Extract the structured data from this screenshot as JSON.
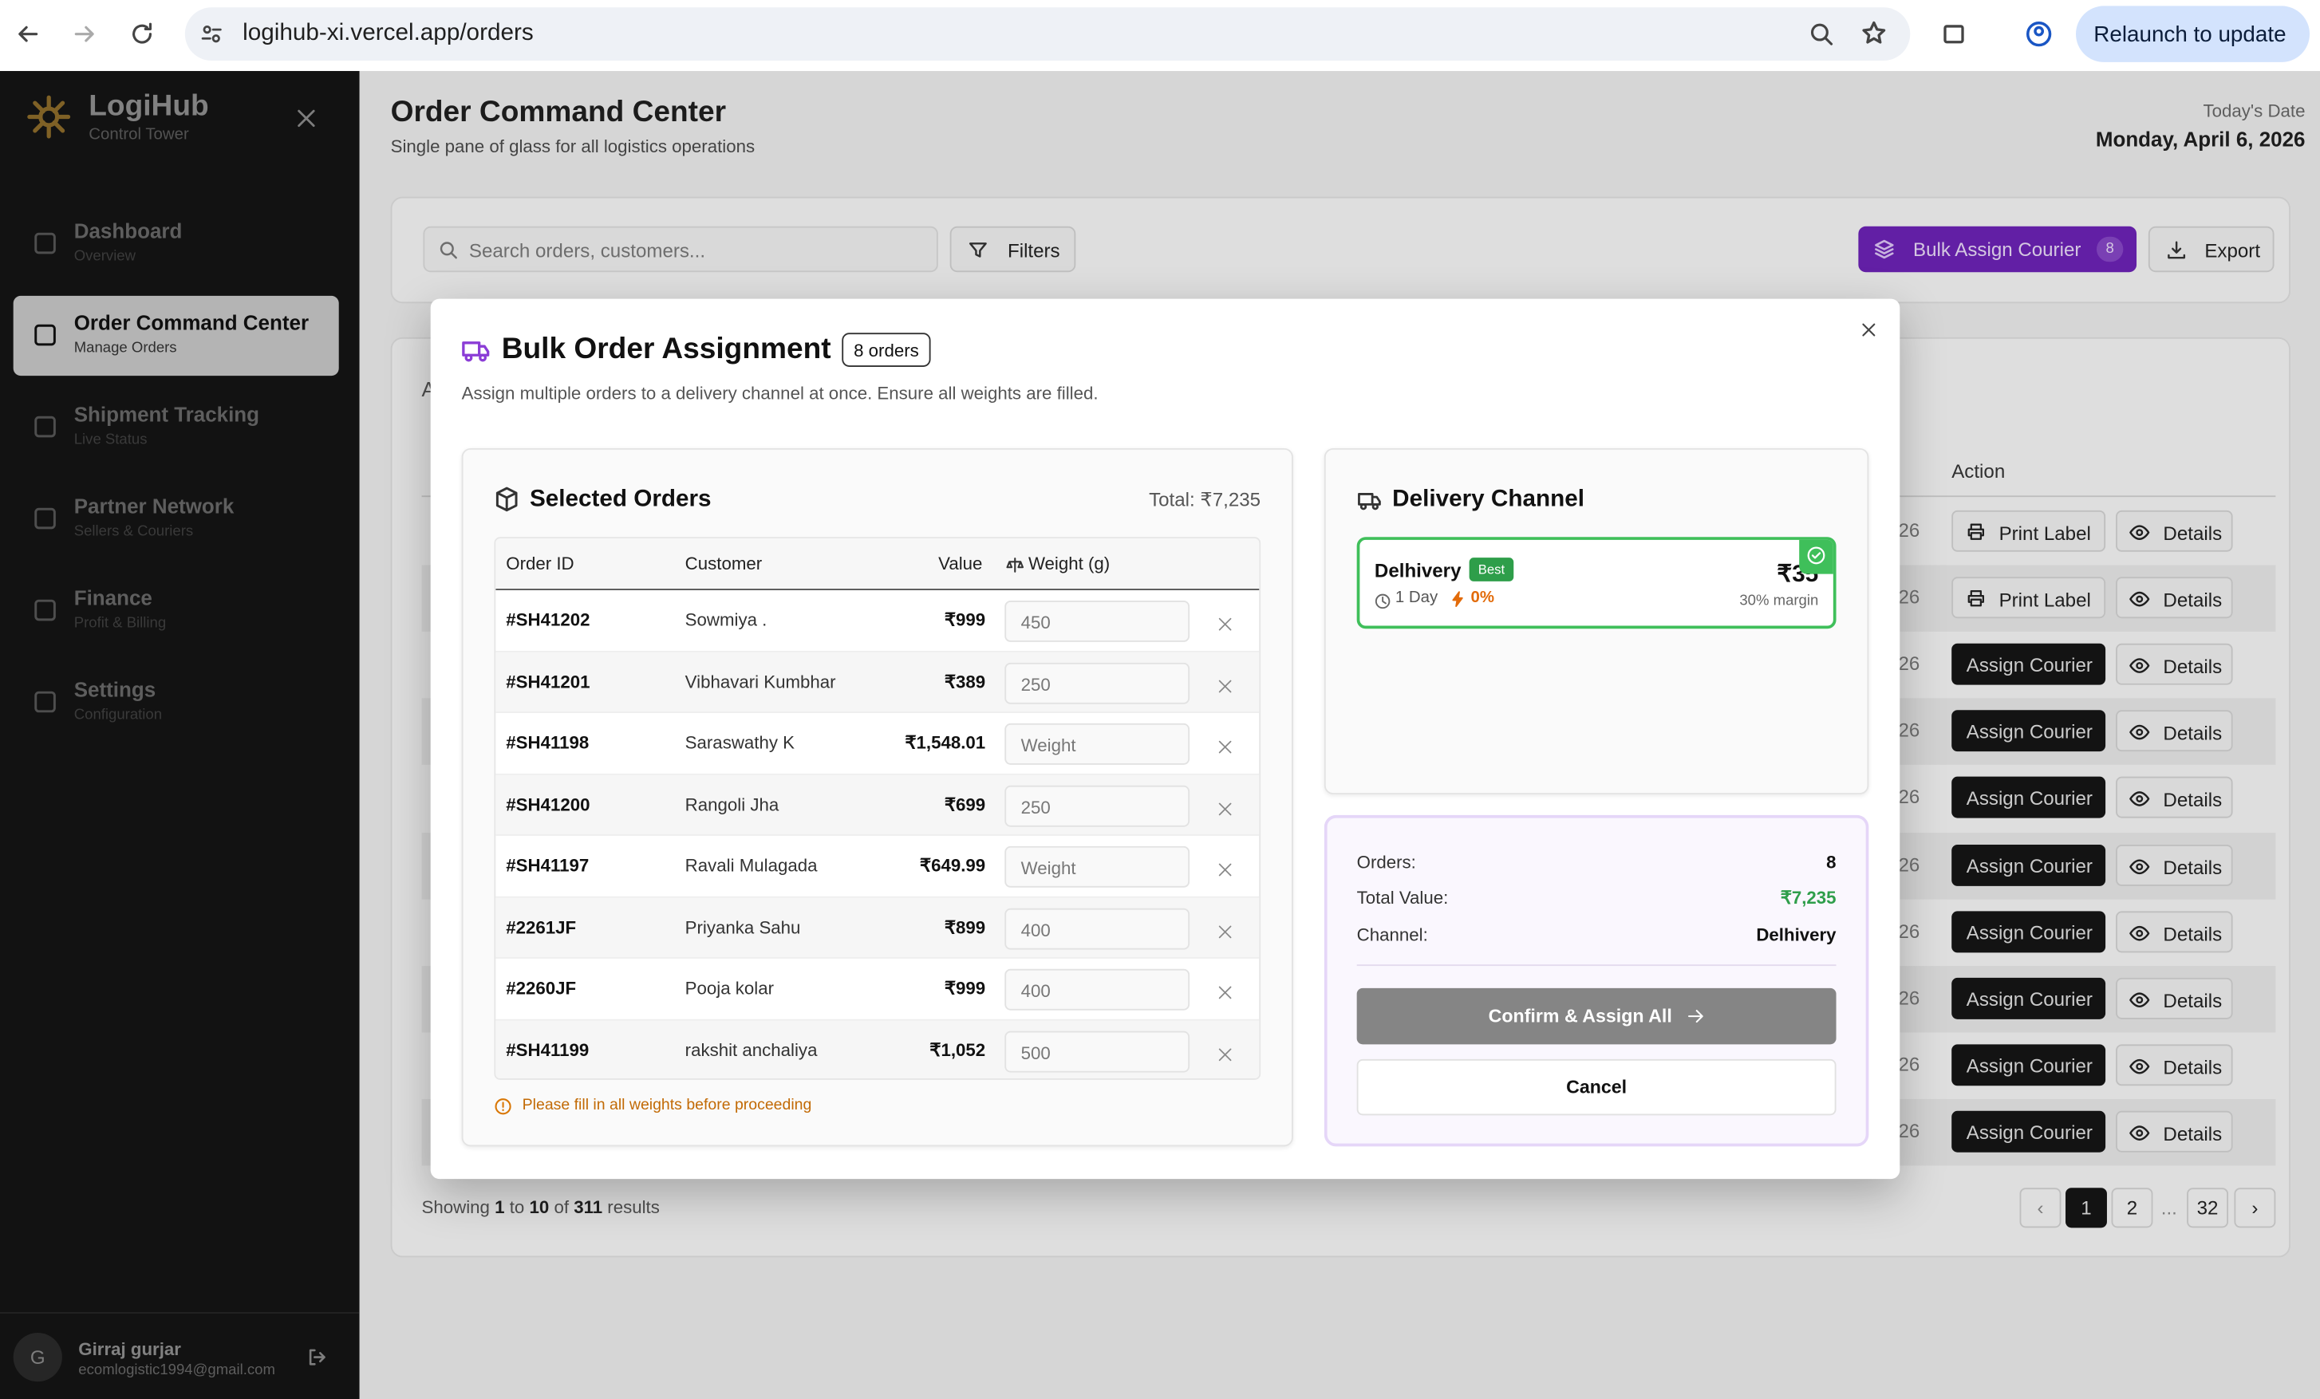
{
  "browser": {
    "url": "logihub-xi.vercel.app/orders",
    "relaunch": "Relaunch to update"
  },
  "sidebar": {
    "brand": "LogiHub",
    "tagline": "Control Tower",
    "nav": [
      {
        "label": "Dashboard",
        "sub": "Overview"
      },
      {
        "label": "Order Command Center",
        "sub": "Manage Orders"
      },
      {
        "label": "Shipment Tracking",
        "sub": "Live Status"
      },
      {
        "label": "Partner Network",
        "sub": "Sellers & Couriers"
      },
      {
        "label": "Finance",
        "sub": "Profit & Billing"
      },
      {
        "label": "Settings",
        "sub": "Configuration"
      }
    ],
    "user": {
      "initial": "G",
      "name": "Girraj gurjar",
      "email": "ecomlogistic1994@gmail.com"
    }
  },
  "header": {
    "title": "Order Command Center",
    "subtitle": "Single pane of glass for all logistics operations",
    "date_label": "Today's Date",
    "date": "Monday, April 6, 2026"
  },
  "toolbar": {
    "search": "Search orders, customers...",
    "filters": "Filters",
    "bulk": "Bulk Assign Courier",
    "bulk_count": "8",
    "export": "Export"
  },
  "table": {
    "tab_fragment": "A",
    "action_header": "Action",
    "details": "Details",
    "rows": [
      {
        "fragment": "26",
        "action": "Print Label"
      },
      {
        "fragment": "26",
        "action": "Print Label"
      },
      {
        "fragment": "26",
        "action": "Assign Courier"
      },
      {
        "fragment": "26",
        "action": "Assign Courier"
      },
      {
        "fragment": "26",
        "action": "Assign Courier"
      },
      {
        "fragment": "26",
        "action": "Assign Courier"
      },
      {
        "fragment": "26",
        "action": "Assign Courier"
      },
      {
        "fragment": "26",
        "action": "Assign Courier"
      },
      {
        "fragment": "26",
        "action": "Assign Courier"
      },
      {
        "fragment": "26",
        "action": "Assign Courier"
      }
    ]
  },
  "pagination": {
    "showing": [
      "Showing ",
      "1",
      " to ",
      "10",
      " of ",
      "311",
      " results"
    ],
    "pages": [
      "1",
      "2",
      "...",
      "32"
    ]
  },
  "modal": {
    "title": "Bulk Order Assignment",
    "badge": "8 orders",
    "description": "Assign multiple orders to a delivery channel at once. Ensure all weights are filled.",
    "orders": {
      "heading": "Selected Orders",
      "total": "Total: ₹7,235",
      "columns": [
        "Order ID",
        "Customer",
        "Value",
        "Weight (g)"
      ],
      "weight_placeholder": "Weight",
      "rows": [
        {
          "id": "#SH41202",
          "customer": "Sowmiya .",
          "value": "₹999",
          "weight": "450"
        },
        {
          "id": "#SH41201",
          "customer": "Vibhavari Kumbhar",
          "value": "₹389",
          "weight": "250"
        },
        {
          "id": "#SH41198",
          "customer": "Saraswathy K",
          "value": "₹1,548.01",
          "weight": null
        },
        {
          "id": "#SH41200",
          "customer": "Rangoli Jha",
          "value": "₹699",
          "weight": "250"
        },
        {
          "id": "#SH41197",
          "customer": "Ravali Mulagada",
          "value": "₹649.99",
          "weight": null
        },
        {
          "id": "#2261JF",
          "customer": "Priyanka Sahu",
          "value": "₹899",
          "weight": "400"
        },
        {
          "id": "#2260JF",
          "customer": "Pooja kolar",
          "value": "₹999",
          "weight": "400"
        },
        {
          "id": "#SH41199",
          "customer": "rakshit anchaliya",
          "value": "₹1,052",
          "weight": "500"
        }
      ],
      "warning": "Please fill in all weights before proceeding"
    },
    "channel": {
      "heading": "Delivery Channel",
      "name": "Delhivery",
      "tag": "Best",
      "time": "1 Day",
      "rate": "0%",
      "price": "₹35",
      "margin": "30% margin"
    },
    "summary": {
      "rows": [
        [
          "Orders:",
          "8"
        ],
        [
          "Total Value:",
          "₹7,235"
        ],
        [
          "Channel:",
          "Delhivery"
        ]
      ],
      "confirm": "Confirm & Assign All",
      "cancel": "Cancel"
    }
  }
}
